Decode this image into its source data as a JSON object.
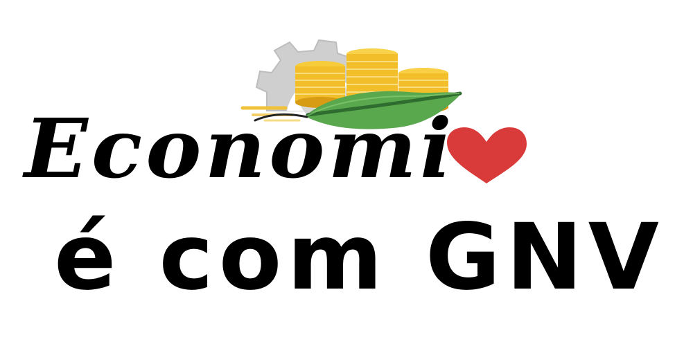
{
  "headline": {
    "text": "Economi"
  },
  "tagline": {
    "text": "é com GNV"
  },
  "icons": {
    "emblem": "gear-coins-leaf-icon",
    "heart": "heart-icon"
  },
  "colors": {
    "text": "#000000",
    "gear": "#c9c9c9",
    "coin": "#f2c12e",
    "coin_dark": "#d89a12",
    "leaf": "#57a84b",
    "leaf_dark": "#2f6f2e",
    "heart": "#d93a3a",
    "background": "#ffffff"
  }
}
